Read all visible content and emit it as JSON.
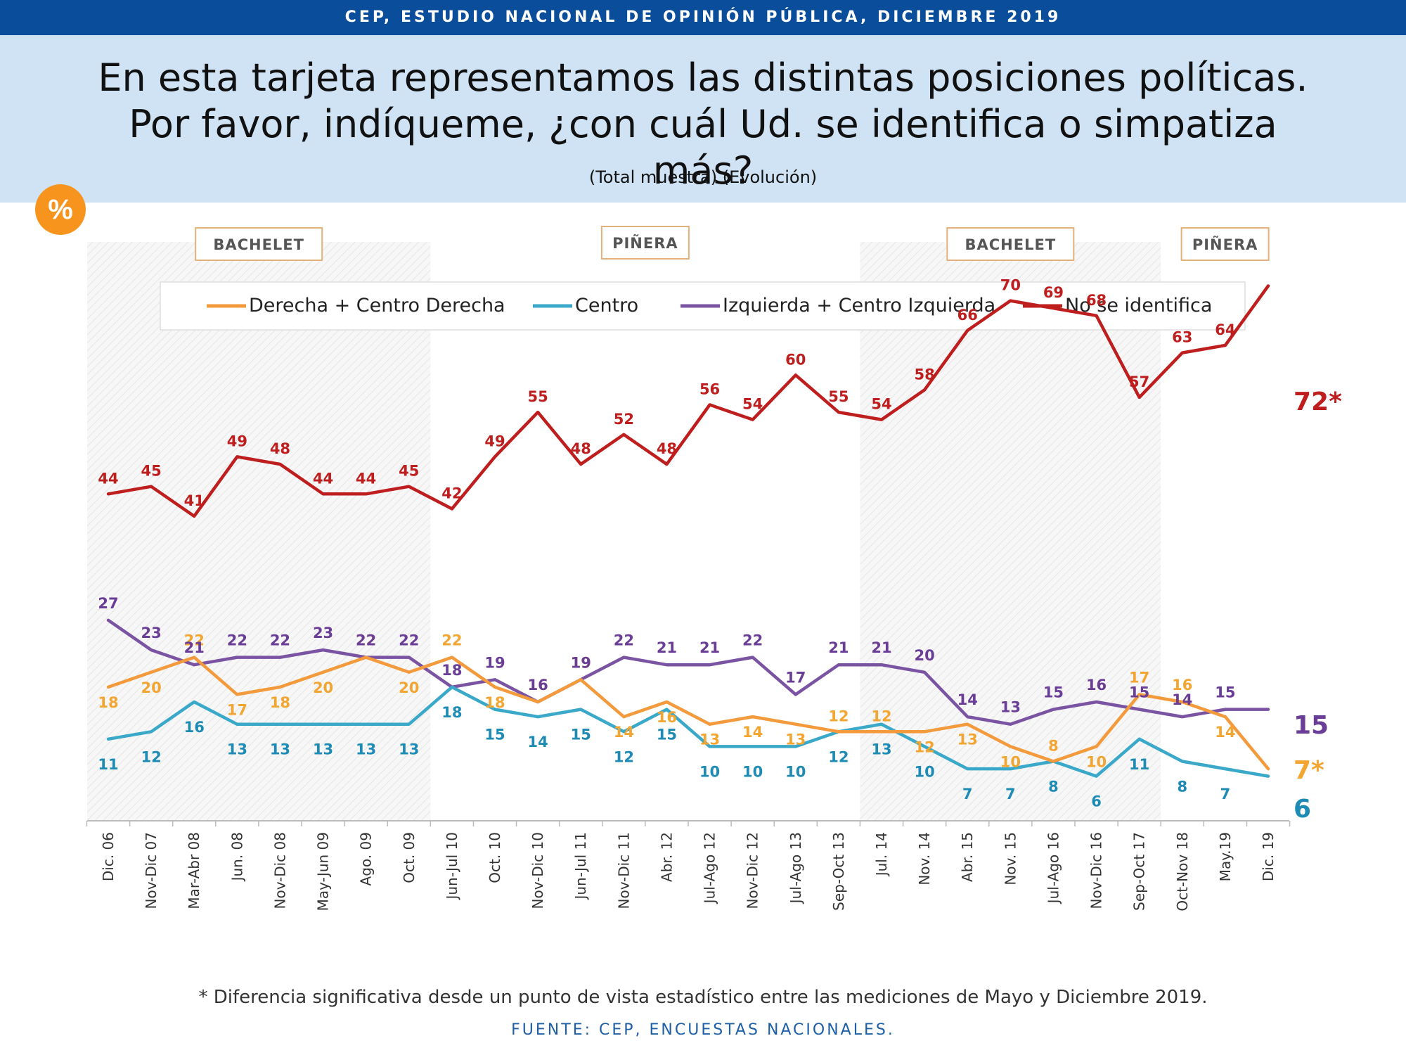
{
  "header": {
    "banner": "CEP, ESTUDIO NACIONAL DE OPINIÓN PÚBLICA, DICIEMBRE 2019",
    "question": "En esta tarjeta representamos las distintas posiciones políticas. Por favor, indíqueme, ¿con cuál Ud. se identifica o simpatiza más?",
    "subtitle": "(Total muestra) (Evolución)",
    "badge": "%"
  },
  "footer": {
    "note": "* Diferencia significativa desde un punto de vista estadístico entre las mediciones de Mayo y Diciembre 2019.",
    "source": "FUENTE: CEP, ENCUESTAS NACIONALES."
  },
  "chart_data": {
    "type": "line",
    "ylim": [
      0,
      80
    ],
    "grid": false,
    "legend_position": "top",
    "x": [
      "Dic. 06",
      "Nov-Dic 07",
      "Mar-Abr 08",
      "Jun. 08",
      "Nov-Dic 08",
      "May-Jun 09",
      "Ago. 09",
      "Oct. 09",
      "Jun-Jul 10",
      "Oct. 10",
      "Nov-Dic 10",
      "Jun-Jul 11",
      "Nov-Dic 11",
      "Abr. 12",
      "Jul-Ago 12",
      "Nov-Dic 12",
      "Jul-Ago 13",
      "Sep-Oct 13",
      "Jul. 14",
      "Nov. 14",
      "Abr. 15",
      "Nov. 15",
      "Jul-Ago 16",
      "Nov-Dic 16",
      "Sep-Oct 17",
      "Oct-Nov 18",
      "May.19",
      "Dic. 19"
    ],
    "periods": [
      {
        "label": "BACHELET",
        "start": 0,
        "end": 7,
        "shaded": true
      },
      {
        "label": "PIÑERA",
        "start": 8,
        "end": 17,
        "shaded": false
      },
      {
        "label": "BACHELET",
        "start": 18,
        "end": 24,
        "shaded": true
      },
      {
        "label": "PIÑERA",
        "start": 25,
        "end": 27,
        "shaded": false
      }
    ],
    "series": [
      {
        "name": "Derecha + Centro Derecha",
        "color": "#f39a3c",
        "label_color": "#f3a531",
        "values": [
          18,
          20,
          22,
          17,
          18,
          20,
          22,
          20,
          22,
          18,
          16,
          19,
          14,
          16,
          13,
          14,
          13,
          12,
          12,
          12,
          13,
          10,
          8,
          10,
          17,
          16,
          14,
          7
        ],
        "end_label": "7*"
      },
      {
        "name": "Centro",
        "color": "#3aa8c8",
        "label_color": "#1e8bb4",
        "values": [
          11,
          12,
          16,
          13,
          13,
          13,
          13,
          13,
          18,
          15,
          14,
          15,
          12,
          15,
          10,
          10,
          10,
          12,
          13,
          10,
          7,
          7,
          8,
          6,
          11,
          8,
          7,
          6
        ],
        "end_label": "6"
      },
      {
        "name": "Izquierda + Centro Izquierda",
        "color": "#7a54a3",
        "label_color": "#6a3d96",
        "values": [
          27,
          23,
          21,
          22,
          22,
          23,
          22,
          22,
          18,
          19,
          16,
          19,
          22,
          21,
          21,
          22,
          17,
          21,
          21,
          20,
          14,
          13,
          15,
          16,
          15,
          14,
          15,
          15
        ],
        "end_label": "15"
      },
      {
        "name": "No se identifica",
        "color": "#bf1e1e",
        "label_color": "#bf1e1e",
        "values": [
          44,
          45,
          41,
          49,
          48,
          44,
          44,
          45,
          42,
          49,
          55,
          48,
          52,
          48,
          56,
          54,
          60,
          55,
          54,
          58,
          66,
          70,
          69,
          68,
          57,
          63,
          64,
          72
        ],
        "end_label": "72*"
      }
    ]
  }
}
